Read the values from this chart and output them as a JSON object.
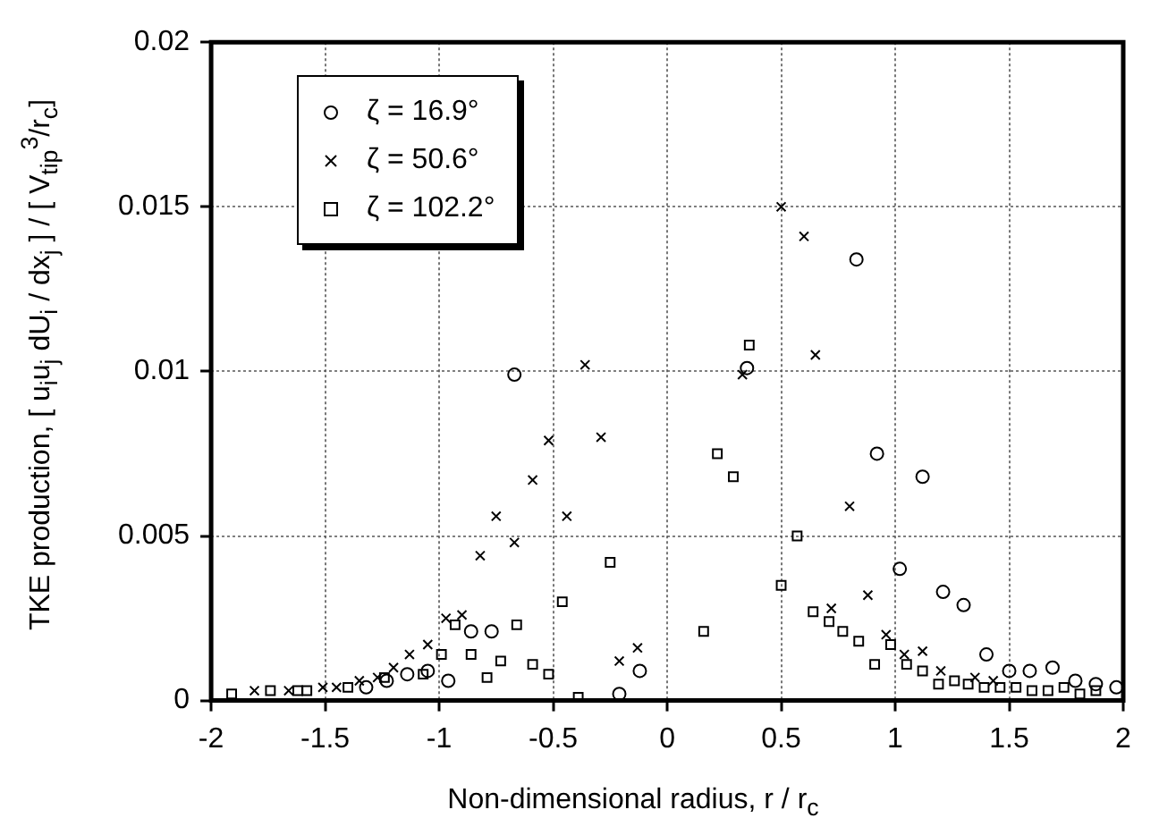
{
  "chart_data": {
    "type": "scatter",
    "xlabel": "Non-dimensional radius, r / r$_{c}$",
    "ylabel": "TKE production, [ u$_{i}$u$_{j}$ dU$_{i}$ / dx$_{j}$ ] / [ V$_{tip}$$^{3}$/r$_{c}$]",
    "xlim": [
      -2,
      2
    ],
    "xticks": [
      -2,
      -1.5,
      -1,
      -0.5,
      0,
      0.5,
      1,
      1.5,
      2
    ],
    "ylim": [
      0,
      0.02
    ],
    "yticks": [
      0,
      0.005,
      0.01,
      0.015,
      0.02
    ],
    "grid": true,
    "legend": "top left",
    "series": [
      {
        "name": "ζ = 16.9°",
        "color": "#000000",
        "marker": "circle",
        "x": [
          -1.32,
          -1.23,
          -1.14,
          -1.05,
          -0.96,
          -0.86,
          -0.77,
          -0.67,
          -0.21,
          -0.12,
          0.35,
          0.83,
          0.92,
          1.02,
          1.12,
          1.21,
          1.3,
          1.4,
          1.5,
          1.59,
          1.69,
          1.79,
          1.88,
          1.97
        ],
        "values": [
          0.0004,
          0.0006,
          0.0008,
          0.0009,
          0.0006,
          0.0021,
          0.0021,
          0.0099,
          0.0002,
          0.0009,
          0.0101,
          0.0134,
          0.0075,
          0.004,
          0.0068,
          0.0033,
          0.0029,
          0.0014,
          0.0009,
          0.0009,
          0.001,
          0.0006,
          0.0005,
          0.0004
        ]
      },
      {
        "name": "ζ = 50.6°",
        "color": "#000000",
        "marker": "cross",
        "x": [
          -1.81,
          -1.66,
          -1.51,
          -1.45,
          -1.35,
          -1.27,
          -1.2,
          -1.13,
          -1.05,
          -0.97,
          -0.9,
          -0.82,
          -0.75,
          -0.67,
          -0.59,
          -0.52,
          -0.44,
          -0.36,
          -0.29,
          -0.21,
          -0.13,
          0.33,
          0.5,
          0.6,
          0.65,
          0.72,
          0.8,
          0.88,
          0.96,
          1.04,
          1.12,
          1.2,
          1.35,
          1.43
        ],
        "values": [
          0.0003,
          0.0003,
          0.0004,
          0.0004,
          0.0006,
          0.0007,
          0.001,
          0.0014,
          0.0017,
          0.0025,
          0.0026,
          0.0044,
          0.0056,
          0.0048,
          0.0067,
          0.0079,
          0.0056,
          0.0102,
          0.008,
          0.0012,
          0.0016,
          0.0099,
          0.015,
          0.0141,
          0.0105,
          0.0028,
          0.0059,
          0.0032,
          0.002,
          0.0014,
          0.0015,
          0.0009,
          0.0007,
          0.0006
        ]
      },
      {
        "name": "ζ = 102.2°",
        "color": "#000000",
        "marker": "square",
        "x": [
          -1.91,
          -1.74,
          -1.62,
          -1.58,
          -1.4,
          -1.24,
          -1.07,
          -0.99,
          -0.93,
          -0.86,
          -0.79,
          -0.73,
          -0.66,
          -0.59,
          -0.52,
          -0.46,
          -0.39,
          -0.25,
          0.16,
          0.22,
          0.29,
          0.36,
          0.5,
          0.57,
          0.64,
          0.71,
          0.77,
          0.84,
          0.91,
          0.98,
          1.05,
          1.12,
          1.19,
          1.26,
          1.32,
          1.39,
          1.46,
          1.53,
          1.6,
          1.67,
          1.74,
          1.81,
          1.88
        ],
        "values": [
          0.0002,
          0.0003,
          0.0003,
          0.0003,
          0.0004,
          0.0007,
          0.0008,
          0.0014,
          0.0023,
          0.0014,
          0.0007,
          0.0012,
          0.0023,
          0.0011,
          0.0008,
          0.003,
          0.0001,
          0.0042,
          0.0021,
          0.0075,
          0.0068,
          0.0108,
          0.0035,
          0.005,
          0.0027,
          0.0024,
          0.0021,
          0.0018,
          0.0011,
          0.0017,
          0.0011,
          0.0009,
          0.0005,
          0.0006,
          0.0005,
          0.0004,
          0.0004,
          0.0004,
          0.0003,
          0.0003,
          0.0004,
          0.0002,
          0.0003
        ]
      }
    ]
  }
}
